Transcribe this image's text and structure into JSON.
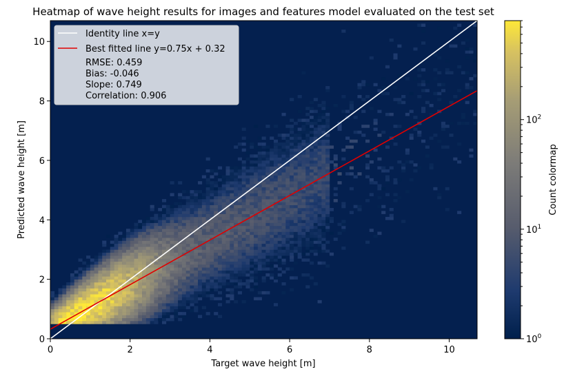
{
  "chart_data": {
    "type": "heatmap",
    "title": "Heatmap of wave height results for images and features model evaluated on the test set",
    "xlabel": "Target wave height [m]",
    "ylabel": "Predicted wave height [m]",
    "xlim": [
      0,
      10.7
    ],
    "ylim": [
      0,
      10.7
    ],
    "xticks": [
      0,
      2,
      4,
      6,
      8,
      10
    ],
    "yticks": [
      0,
      2,
      4,
      6,
      8,
      10
    ],
    "grid": false,
    "background_color": "#04204f",
    "lines": [
      {
        "name": "Identity line x=y",
        "slope": 1.0,
        "intercept": 0.0,
        "color": "#ffffff"
      },
      {
        "name": "Best fitted line y=0.75x + 0.32",
        "slope": 0.75,
        "intercept": 0.32,
        "color": "#e00000"
      }
    ],
    "stats": [
      "RMSE: 0.459",
      "Bias: -0.046",
      "Slope: 0.749",
      "Correlation: 0.906"
    ],
    "legend_position": "top-left",
    "colorbar": {
      "label": "Count colormap",
      "scale": "log",
      "colormap": "cividis",
      "range": [
        1,
        800
      ],
      "ticks": [
        {
          "value": 1,
          "base": "10",
          "exp": "0"
        },
        {
          "value": 10,
          "base": "10",
          "exp": "1"
        },
        {
          "value": 100,
          "base": "10",
          "exp": "2"
        }
      ]
    },
    "density_model": {
      "bin_width": 0.1,
      "fit_slope": 0.75,
      "fit_intercept": 0.32,
      "peak_x": 0.8,
      "peak_count": 800,
      "min_predicted": 0.5
    }
  }
}
